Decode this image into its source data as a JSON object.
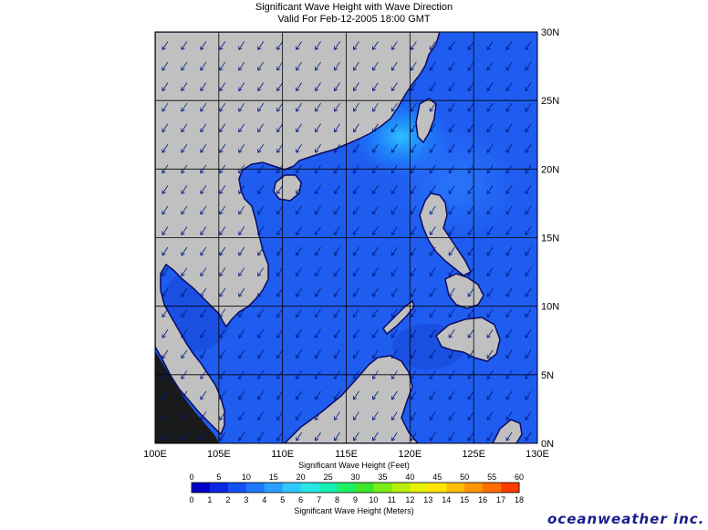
{
  "header": {
    "title": "Significant Wave Height with Wave Direction",
    "subtitle": "Valid For Feb-12-2005 18:00 GMT"
  },
  "map": {
    "lon_range": [
      100,
      130
    ],
    "lat_range": [
      0,
      30
    ],
    "lon_ticks": [
      "100E",
      "105E",
      "110E",
      "115E",
      "120E",
      "125E",
      "130E"
    ],
    "lat_ticks": [
      "0N",
      "5N",
      "10N",
      "15N",
      "20N",
      "25N",
      "30N"
    ],
    "land_color": "#c0c0c0",
    "sea_color": "#1f5cf0",
    "grid_color": "#000000",
    "wave_direction": "southwest",
    "highest_wave_region": "Taiwan Strait"
  },
  "colorbar": {
    "feet_label": "Significant Wave Height (Feet)",
    "meters_label": "Significant Wave Height (Meters)",
    "feet_ticks": [
      "0",
      "5",
      "10",
      "15",
      "20",
      "25",
      "30",
      "35",
      "40",
      "45",
      "50",
      "55",
      "60"
    ],
    "meter_ticks": [
      "0",
      "1",
      "2",
      "3",
      "4",
      "5",
      "6",
      "7",
      "8",
      "9",
      "10",
      "11",
      "12",
      "13",
      "14",
      "15",
      "16",
      "17",
      "18"
    ],
    "colors": [
      "#0000c8",
      "#0a28e6",
      "#1450f5",
      "#1e78ff",
      "#28a0ff",
      "#32c8ff",
      "#28e6e6",
      "#14f0b4",
      "#1ef064",
      "#3ce628",
      "#78ee14",
      "#b4f00a",
      "#e6f000",
      "#ffe600",
      "#ffbe00",
      "#ff9600",
      "#ff6e00",
      "#ff3c00"
    ]
  },
  "brand": "oceanweather inc."
}
